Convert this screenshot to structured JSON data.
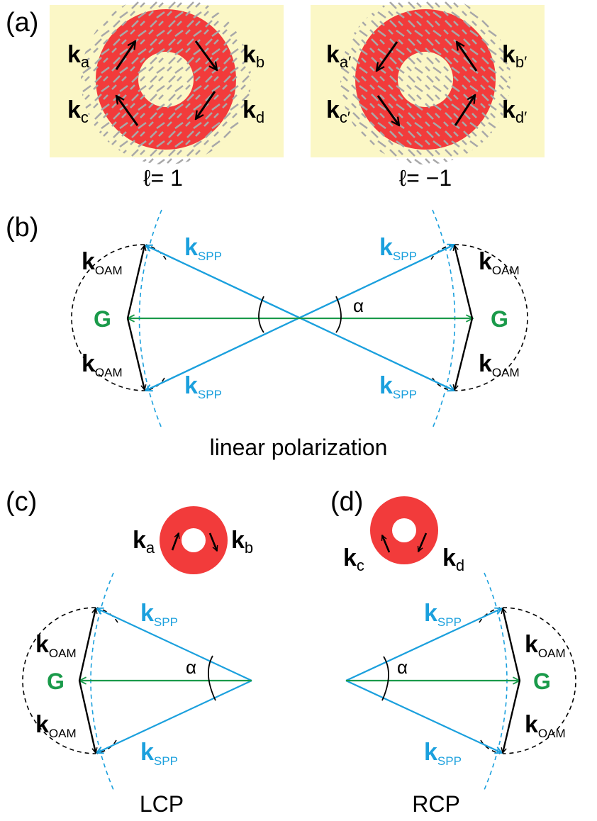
{
  "panels": {
    "a": {
      "label": "(a)",
      "left_caption": "ℓ= 1",
      "right_caption": "ℓ= −1",
      "left_k": {
        "main": "k",
        "a": "a",
        "b": "b",
        "c": "c",
        "d": "d"
      },
      "right_k": {
        "main": "k",
        "a": "a′",
        "b": "b′",
        "c": "c′",
        "d": "d′"
      }
    },
    "b": {
      "label": "(b)",
      "caption": "linear polarization",
      "k_main": "k",
      "spp": "SPP",
      "oam": "OAM",
      "g": "G",
      "alpha": "α"
    },
    "c": {
      "label": "(c)",
      "caption": "LCP",
      "donut_k": {
        "main": "k",
        "left": "a",
        "right": "b"
      }
    },
    "d": {
      "label": "(d)",
      "caption": "RCP",
      "donut_k": {
        "main": "k",
        "left": "c",
        "right": "d"
      }
    }
  },
  "colors": {
    "ring": "#f23b3b",
    "box_bg": "#fbf7c6",
    "hatch": "#a8a8a8",
    "spp_line": "#1ba0dd",
    "g_line": "#1a9a4a",
    "oam_line": "#000000"
  }
}
